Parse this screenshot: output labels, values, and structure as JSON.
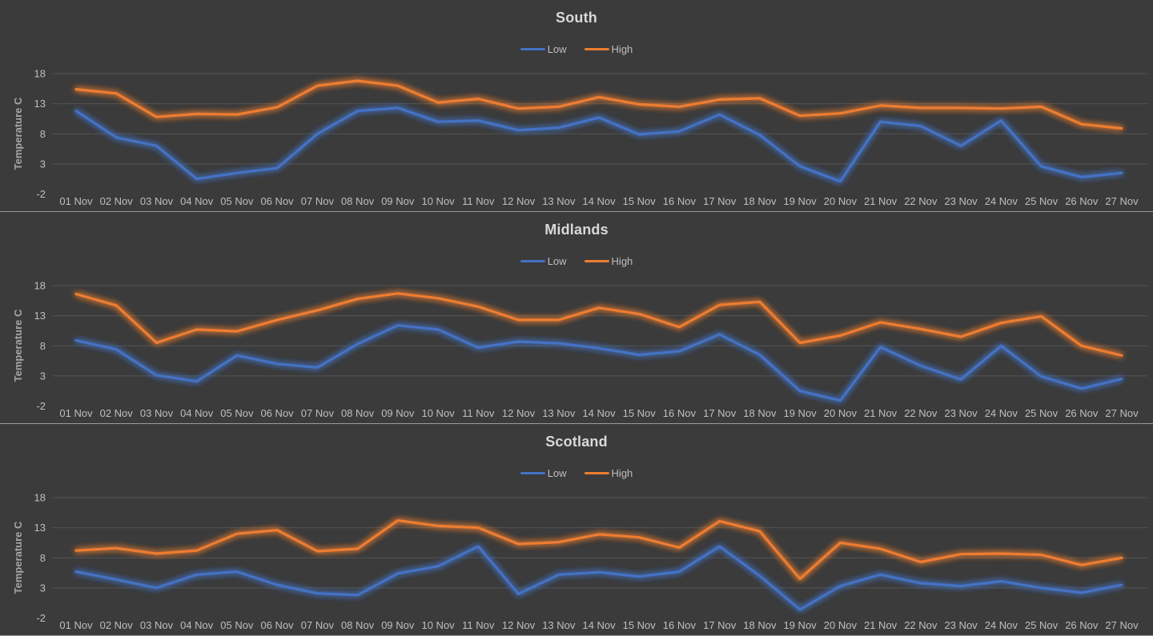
{
  "page": {
    "background_color": "#3B3B3B",
    "gridline_color": "#555555",
    "separator_color": "#9A9A9A",
    "tick_text_color": "#BFBFBF",
    "title_text_color": "#D9D9D9"
  },
  "axis": {
    "ylabel": "Temperature C",
    "yticks": [
      18,
      13,
      8,
      3,
      -2
    ],
    "gridline_values": [
      18,
      13,
      8,
      3
    ]
  },
  "legend": {
    "low_label": "Low",
    "high_label": "High"
  },
  "chart_data": [
    {
      "type": "line",
      "title": "South",
      "ylabel": "Temperature C",
      "ylim": [
        -2,
        18
      ],
      "grid": true,
      "legend_position": "top",
      "categories": [
        "01 Nov",
        "02 Nov",
        "03 Nov",
        "04 Nov",
        "05 Nov",
        "06 Nov",
        "07 Nov",
        "08 Nov",
        "09 Nov",
        "10 Nov",
        "11 Nov",
        "12 Nov",
        "13 Nov",
        "14 Nov",
        "15 Nov",
        "16 Nov",
        "17 Nov",
        "18 Nov",
        "19 Nov",
        "20 Nov",
        "21 Nov",
        "22 Nov",
        "23 Nov",
        "24 Nov",
        "25 Nov",
        "26 Nov",
        "27 Nov"
      ],
      "series": [
        {
          "name": "Low",
          "color": "#4472C4",
          "values": [
            11.8,
            7.4,
            6.0,
            0.5,
            1.5,
            2.3,
            8.0,
            11.8,
            12.3,
            10.0,
            10.2,
            8.6,
            9.0,
            10.7,
            7.9,
            8.4,
            11.2,
            7.8,
            2.6,
            0.1,
            10.0,
            9.3,
            6.0,
            10.2,
            2.6,
            0.8,
            1.5
          ]
        },
        {
          "name": "High",
          "color": "#ED7D31",
          "values": [
            15.4,
            14.7,
            10.8,
            11.3,
            11.2,
            12.4,
            16.0,
            16.8,
            16.0,
            13.2,
            13.8,
            12.2,
            12.5,
            14.1,
            12.9,
            12.5,
            13.7,
            13.9,
            11.0,
            11.4,
            12.7,
            12.3,
            12.3,
            12.2,
            12.5,
            9.6,
            8.9
          ]
        }
      ]
    },
    {
      "type": "line",
      "title": "Midlands",
      "ylabel": "Temperature C",
      "ylim": [
        -2,
        18
      ],
      "grid": true,
      "legend_position": "top",
      "categories": [
        "01 Nov",
        "02 Nov",
        "03 Nov",
        "04 Nov",
        "05 Nov",
        "06 Nov",
        "07 Nov",
        "08 Nov",
        "09 Nov",
        "10 Nov",
        "11 Nov",
        "12 Nov",
        "13 Nov",
        "14 Nov",
        "15 Nov",
        "16 Nov",
        "17 Nov",
        "18 Nov",
        "19 Nov",
        "20 Nov",
        "21 Nov",
        "22 Nov",
        "23 Nov",
        "24 Nov",
        "25 Nov",
        "26 Nov",
        "27 Nov"
      ],
      "series": [
        {
          "name": "Low",
          "color": "#4472C4",
          "values": [
            8.9,
            7.4,
            3.1,
            2.1,
            6.4,
            5.0,
            4.4,
            8.3,
            11.4,
            10.7,
            7.7,
            8.7,
            8.4,
            7.6,
            6.5,
            7.1,
            9.9,
            6.5,
            0.5,
            -1.1,
            7.8,
            4.7,
            2.4,
            8.0,
            2.9,
            0.9,
            2.5
          ]
        },
        {
          "name": "High",
          "color": "#ED7D31",
          "values": [
            16.6,
            14.7,
            8.5,
            10.7,
            10.4,
            12.3,
            13.9,
            15.8,
            16.7,
            15.9,
            14.5,
            12.3,
            12.3,
            14.3,
            13.3,
            11.1,
            14.8,
            15.3,
            8.5,
            9.7,
            11.9,
            10.8,
            9.5,
            11.8,
            12.9,
            8.0,
            6.4
          ]
        }
      ]
    },
    {
      "type": "line",
      "title": "Scotland",
      "ylabel": "Temperature C",
      "ylim": [
        -2,
        18
      ],
      "grid": true,
      "legend_position": "top",
      "categories": [
        "01 Nov",
        "02 Nov",
        "03 Nov",
        "04 Nov",
        "05 Nov",
        "06 Nov",
        "07 Nov",
        "08 Nov",
        "09 Nov",
        "10 Nov",
        "11 Nov",
        "12 Nov",
        "13 Nov",
        "14 Nov",
        "15 Nov",
        "16 Nov",
        "17 Nov",
        "18 Nov",
        "19 Nov",
        "20 Nov",
        "21 Nov",
        "22 Nov",
        "23 Nov",
        "24 Nov",
        "25 Nov",
        "26 Nov",
        "27 Nov"
      ],
      "series": [
        {
          "name": "Low",
          "color": "#4472C4",
          "values": [
            5.7,
            4.4,
            3.0,
            5.2,
            5.7,
            3.5,
            2.1,
            1.8,
            5.4,
            6.6,
            9.9,
            2.0,
            5.2,
            5.6,
            4.9,
            5.7,
            9.9,
            5.0,
            -0.6,
            3.3,
            5.2,
            3.8,
            3.3,
            4.1,
            3.0,
            2.2,
            3.5
          ]
        },
        {
          "name": "High",
          "color": "#ED7D31",
          "values": [
            9.2,
            9.6,
            8.7,
            9.2,
            12.0,
            12.6,
            9.1,
            9.5,
            14.2,
            13.3,
            13.0,
            10.3,
            10.6,
            11.9,
            11.4,
            9.7,
            14.1,
            12.4,
            4.5,
            10.5,
            9.5,
            7.3,
            8.6,
            8.7,
            8.5,
            6.8,
            8.0
          ]
        }
      ]
    }
  ]
}
